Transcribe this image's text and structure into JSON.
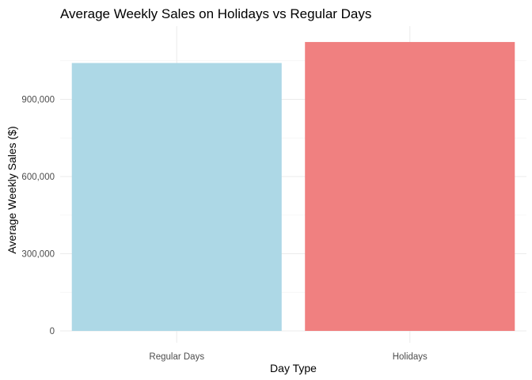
{
  "chart_data": {
    "type": "bar",
    "title": "Average Weekly Sales on Holidays vs Regular Days",
    "xlabel": "Day Type",
    "ylabel": "Average Weekly Sales ($)",
    "categories": [
      "Regular Days",
      "Holidays"
    ],
    "values": [
      1041256,
      1122888
    ],
    "colors": [
      "#add8e6",
      "#f08080"
    ],
    "ylim": [
      0,
      1180000
    ],
    "yticks": [
      0,
      300000,
      600000,
      900000
    ],
    "ytick_labels": [
      "0",
      "300,000",
      "600,000",
      "900,000"
    ],
    "grid": true,
    "legend": "none"
  }
}
